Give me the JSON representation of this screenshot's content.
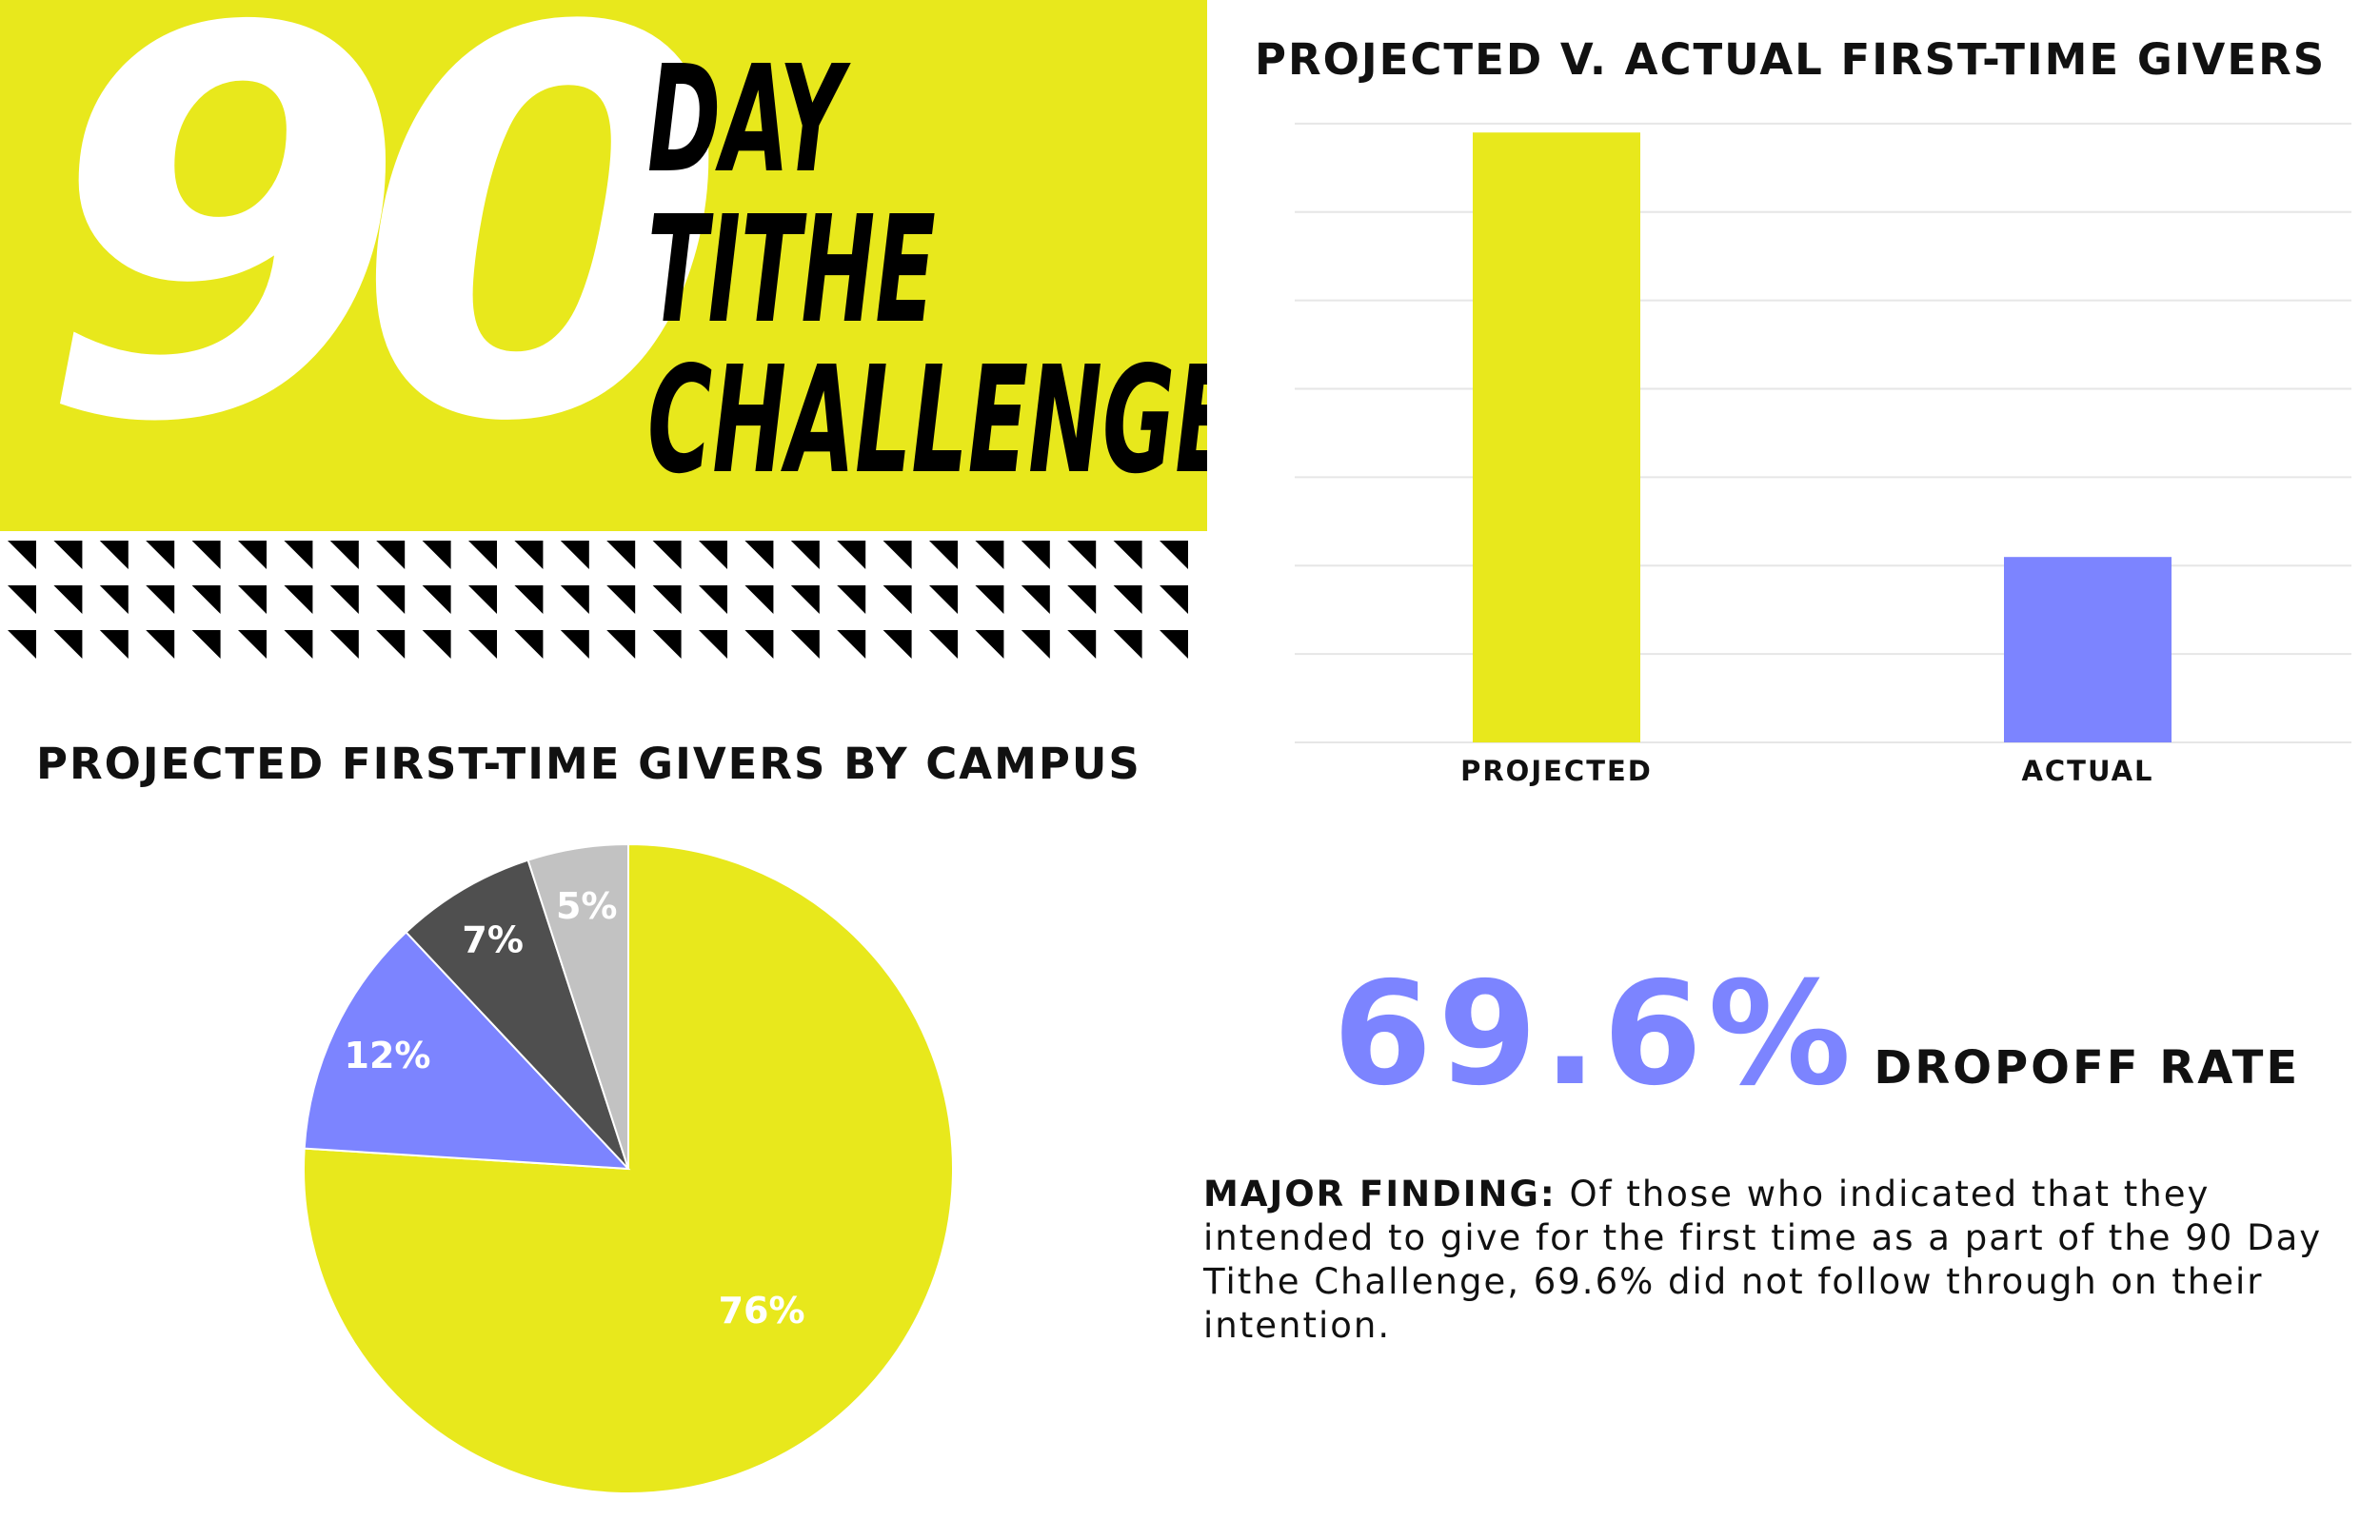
{
  "hero": {
    "number": "90",
    "words": [
      "DAY",
      "TITHE",
      "CHALLENGE"
    ]
  },
  "colors": {
    "brand_yellow": "#e8e81c",
    "accent_blue": "#7c84ff",
    "dark_gray": "#4f4f4f",
    "light_gray": "#c2c2c2",
    "gridline": "#e6e6e6"
  },
  "stat": {
    "value": "69.6%",
    "label": "DROPOFF RATE"
  },
  "finding": {
    "label": "MAJOR FINDING:",
    "text": "Of those who indicated that they intended to give for the first time as a part of the 90 Day Tithe Challenge, 69.6% did not follow through on their intention."
  },
  "chart_data": [
    {
      "type": "bar",
      "title": "PROJECTED V. ACTUAL FIRST-TIME GIVERS",
      "categories": [
        "PROJECTED",
        "ACTUAL"
      ],
      "values": [
        100,
        30.4
      ],
      "colors": [
        "#e8e81c",
        "#7c84ff"
      ],
      "ylim": [
        0,
        103
      ],
      "grid": true,
      "xlabel": "",
      "ylabel": ""
    },
    {
      "type": "pie",
      "title": "PROJECTED FIRST-TIME GIVERS BY CAMPUS",
      "slices": [
        {
          "value": 76,
          "label": "76%",
          "color": "#e8e81c"
        },
        {
          "value": 12,
          "label": "12%",
          "color": "#7c84ff"
        },
        {
          "value": 7,
          "label": "7%",
          "color": "#4f4f4f"
        },
        {
          "value": 5,
          "label": "5%",
          "color": "#c2c2c2"
        }
      ]
    }
  ]
}
